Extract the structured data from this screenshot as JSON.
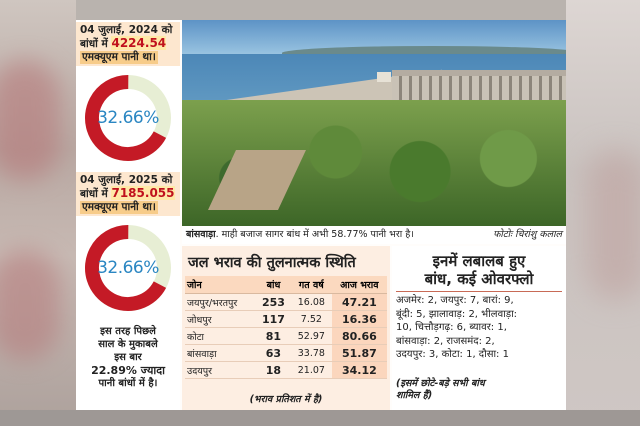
{
  "stat_2024": {
    "date_text": "04 जुलाई, 2024 को",
    "line2_pre": "बांधों में",
    "value": "4224.54",
    "unit_text": "एमक्यूएम पानी था।",
    "percent_label": "32.66%",
    "percent_value": 32.66
  },
  "stat_2025": {
    "date_text": "04 जुलाई, 2025 को",
    "line2_pre": "बांधों में",
    "value": "7185.055",
    "unit_text": "एमक्यूएम पानी था।",
    "percent_label": "32.66%",
    "percent_value": 32.66
  },
  "comparison_note": {
    "line1": "इस तरह पिछले",
    "line2": "साल के मुकाबले",
    "line3": "इस बार",
    "line4": "22.89% ज्यादा",
    "line5": "पानी बांधों में है।"
  },
  "photo_caption": {
    "place": "बांसवाड़ा",
    "text": ". माही बजाज सागर बांध में अभी 58.77% पानी भरा है।",
    "credit": "फोटोः चिरांशु कलाल"
  },
  "colors": {
    "donut_red": "#c41a26",
    "donut_track": "#e7eed4",
    "percent_text": "#2a86c2",
    "table_bg": "#fdeee2"
  },
  "table": {
    "title": "जल भराव की तुलनात्मक स्थिति",
    "headers": [
      "जोन",
      "बांध",
      "गत वर्ष",
      "आज भराव"
    ],
    "rows": [
      [
        "जयपुर/भरतपुर",
        "253",
        "16.08",
        "47.21"
      ],
      [
        "जोधपुर",
        "117",
        "7.52",
        "16.36"
      ],
      [
        "कोटा",
        "81",
        "52.97",
        "80.66"
      ],
      [
        "बांसवाड़ा",
        "63",
        "33.78",
        "51.87"
      ],
      [
        "उदयपुर",
        "18",
        "21.07",
        "34.12"
      ]
    ],
    "footnote": "(भराव प्रतिशत में है)"
  },
  "overflow_panel": {
    "title_line1": "इनमें लबालब हुए",
    "title_line2": "बांध, कई ओवरफ्लो",
    "lines": [
      "अजमेर: 2, जयपुर: 7, बारां: 9,",
      "बूंदी: 5, झालावाड़: 2, भीलवाड़ा:",
      "10, चित्तौड़गढ़: 6, ब्यावर: 1,",
      "बांसवाड़ा: 2, राजसमंद: 2,",
      "उदयपुर: 3, कोटा: 1, दौसा: 1"
    ],
    "note_line1": "(इसमें छोटे-बड़े सभी बांध",
    "note_line2": "शामिल हैं)"
  }
}
